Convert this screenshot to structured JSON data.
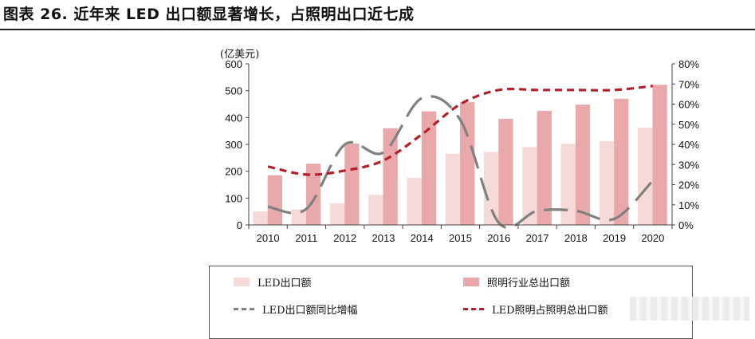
{
  "figure": {
    "title": "图表 26. 近年来 LED 出口额显著增长，占照明出口近七成"
  },
  "chart_data": {
    "type": "bar",
    "title": "",
    "categories": [
      "2010",
      "2011",
      "2012",
      "2013",
      "2014",
      "2015",
      "2016",
      "2017",
      "2018",
      "2019",
      "2020"
    ],
    "y_left": {
      "label": "(亿美元)",
      "lim": [
        0,
        600
      ],
      "ticks": [
        "0",
        "100",
        "200",
        "300",
        "400",
        "500",
        "600"
      ]
    },
    "y_right": {
      "lim": [
        0,
        80
      ],
      "ticks": [
        "0%",
        "10%",
        "20%",
        "30%",
        "40%",
        "50%",
        "60%",
        "70%",
        "80%"
      ]
    },
    "grid": false,
    "legend_position": "bottom",
    "series": [
      {
        "name": "LED出口额",
        "type": "bar",
        "axis": "left",
        "color": "#f6d9d9",
        "values": [
          50,
          58,
          80,
          112,
          175,
          265,
          272,
          290,
          302,
          312,
          362
        ]
      },
      {
        "name": "照明行业总出口额",
        "type": "bar",
        "axis": "left",
        "color": "#e9a9aa",
        "values": [
          185,
          228,
          303,
          360,
          423,
          457,
          395,
          425,
          448,
          470,
          522
        ]
      },
      {
        "name": "LED出口额同比增幅",
        "type": "line",
        "axis": "right",
        "color": "#808080",
        "style": "dashed",
        "values": [
          9,
          8,
          40,
          36,
          63,
          52,
          1,
          7,
          7,
          3,
          22
        ]
      },
      {
        "name": "LED照明占照明总出口额",
        "type": "line",
        "axis": "right",
        "color": "#b3202a",
        "style": "dashed",
        "values": [
          29,
          25,
          27,
          32,
          45,
          60,
          67,
          67,
          67,
          67,
          69
        ]
      }
    ]
  }
}
